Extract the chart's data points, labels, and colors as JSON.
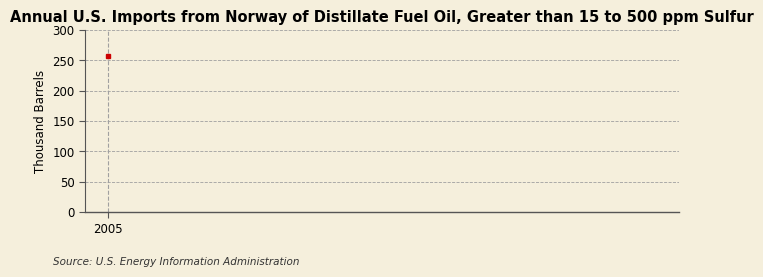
{
  "title": "Annual U.S. Imports from Norway of Distillate Fuel Oil, Greater than 15 to 500 ppm Sulfur",
  "ylabel": "Thousand Barrels",
  "source": "Source: U.S. Energy Information Administration",
  "x_data": [
    2005
  ],
  "y_data": [
    258
  ],
  "ylim": [
    0,
    300
  ],
  "yticks": [
    0,
    50,
    100,
    150,
    200,
    250,
    300
  ],
  "xlim": [
    2004.4,
    2020
  ],
  "xticks": [
    2005
  ],
  "background_color": "#f5efdc",
  "plot_bg_color": "#f5efdc",
  "grid_color": "#a0a0a0",
  "marker_color": "#cc0000",
  "dashed_line_color": "#a0a0a0",
  "spine_color": "#555555",
  "title_fontsize": 10.5,
  "label_fontsize": 8.5,
  "tick_fontsize": 8.5,
  "source_fontsize": 7.5
}
